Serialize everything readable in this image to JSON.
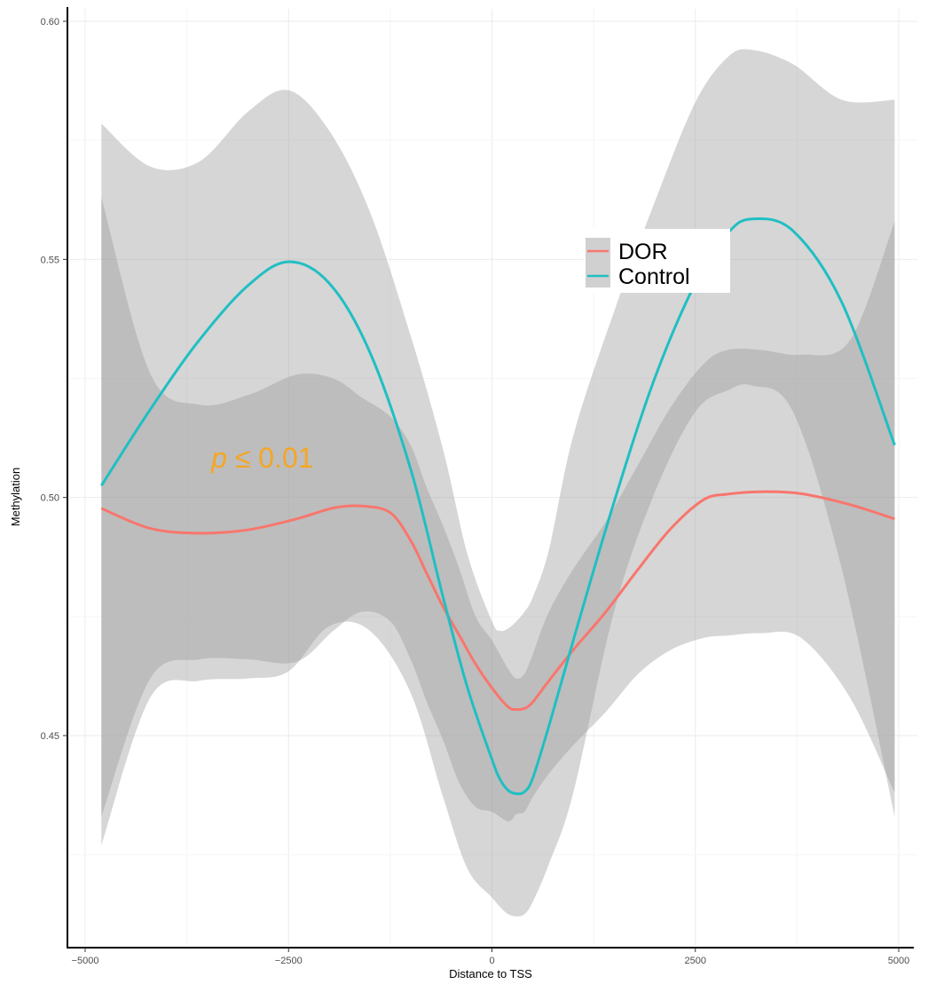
{
  "chart_data": {
    "type": "line",
    "title": "",
    "xlabel": "Distance to TSS",
    "ylabel": "Methylation",
    "xlim": [
      -5000,
      5000
    ],
    "ylim": [
      0.4,
      0.6
    ],
    "x_ticks": [
      -5000,
      -2500,
      0,
      2500,
      5000
    ],
    "x_tick_labels": [
      "−5000",
      "−2500",
      "0",
      "2500",
      "5000"
    ],
    "y_ticks": [
      0.45,
      0.5,
      0.55,
      0.6
    ],
    "y_tick_labels": [
      "0.45",
      "0.50",
      "0.55",
      "0.60"
    ],
    "grid": true,
    "legend_position": "center-right",
    "annotation": {
      "prefix": "p",
      "text": " ≤ 0.01",
      "x": -3450,
      "y": 0.5085,
      "color": "#F5A623"
    },
    "series": [
      {
        "name": "DOR",
        "color": "#F8766D",
        "x": [
          -4800,
          -4200,
          -3600,
          -3000,
          -2400,
          -1950,
          -1600,
          -1250,
          -1000,
          -800,
          -600,
          -400,
          -200,
          0,
          200,
          300,
          400,
          500,
          700,
          1000,
          1400,
          1800,
          2200,
          2600,
          2900,
          3300,
          3800,
          4400,
          4950
        ],
        "y": [
          0.4977,
          0.4935,
          0.4925,
          0.4932,
          0.4955,
          0.4978,
          0.4982,
          0.4968,
          0.491,
          0.484,
          0.477,
          0.471,
          0.465,
          0.46,
          0.456,
          0.4555,
          0.4557,
          0.457,
          0.4615,
          0.468,
          0.476,
          0.485,
          0.4935,
          0.4995,
          0.5007,
          0.5012,
          0.5008,
          0.4985,
          0.4955
        ],
        "ci_lower": [
          0.433,
          0.462,
          0.466,
          0.466,
          0.4655,
          0.472,
          0.476,
          0.474,
          0.466,
          0.457,
          0.449,
          0.44,
          0.435,
          0.434,
          0.432,
          0.4335,
          0.434,
          0.437,
          0.442,
          0.448,
          0.455,
          0.463,
          0.468,
          0.4705,
          0.471,
          0.4715,
          0.4705,
          0.458,
          0.438
        ],
        "ci_upper": [
          0.563,
          0.526,
          0.5195,
          0.5215,
          0.5258,
          0.525,
          0.521,
          0.517,
          0.511,
          0.502,
          0.494,
          0.485,
          0.475,
          0.47,
          0.464,
          0.462,
          0.463,
          0.467,
          0.476,
          0.485,
          0.495,
          0.507,
          0.519,
          0.528,
          0.531,
          0.531,
          0.53,
          0.533,
          0.558
        ]
      },
      {
        "name": "Control",
        "color": "#1FBFC3",
        "x": [
          -4800,
          -4200,
          -3600,
          -3000,
          -2500,
          -2000,
          -1500,
          -1000,
          -600,
          -300,
          0,
          100,
          200,
          300,
          400,
          500,
          700,
          1000,
          1500,
          2000,
          2500,
          2900,
          3200,
          3700,
          4300,
          4950
        ],
        "y": [
          0.5025,
          0.5185,
          0.533,
          0.5445,
          0.5495,
          0.545,
          0.5305,
          0.506,
          0.479,
          0.46,
          0.445,
          0.4408,
          0.4385,
          0.4378,
          0.4382,
          0.441,
          0.452,
          0.47,
          0.499,
          0.525,
          0.545,
          0.5555,
          0.5585,
          0.556,
          0.541,
          0.511
        ],
        "ci_lower": [
          0.427,
          0.458,
          0.4615,
          0.462,
          0.4635,
          0.473,
          0.472,
          0.459,
          0.437,
          0.422,
          0.416,
          0.414,
          0.4125,
          0.412,
          0.4125,
          0.415,
          0.423,
          0.438,
          0.476,
          0.501,
          0.518,
          0.5225,
          0.5235,
          0.518,
          0.485,
          0.433
        ],
        "ci_upper": [
          0.5785,
          0.5695,
          0.5705,
          0.581,
          0.5855,
          0.577,
          0.56,
          0.534,
          0.51,
          0.488,
          0.474,
          0.472,
          0.4725,
          0.474,
          0.476,
          0.479,
          0.489,
          0.513,
          0.539,
          0.562,
          0.583,
          0.5925,
          0.594,
          0.591,
          0.5835,
          0.5835
        ]
      }
    ]
  }
}
